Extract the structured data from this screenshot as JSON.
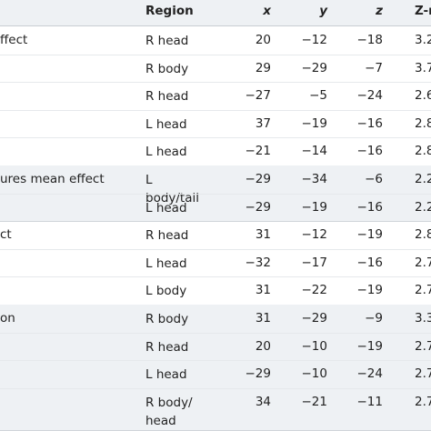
{
  "table": {
    "header": [
      "Region",
      "x",
      "y",
      "z",
      "Z-max"
    ],
    "groups": [
      {
        "label": "ffect",
        "rows": [
          [
            "R head",
            "20",
            "−12",
            "−18",
            "3.2"
          ],
          [
            "R body",
            "29",
            "−29",
            "−7",
            "3.7"
          ],
          [
            "R head",
            "−27",
            "−5",
            "−24",
            "2.6"
          ],
          [
            "L head",
            "37",
            "−19",
            "−16",
            "2.8"
          ],
          [
            "L head",
            "−21",
            "−14",
            "−16",
            "2.8"
          ]
        ]
      },
      {
        "label": "ures mean effect",
        "rows": [
          [
            "L body/tail",
            "−29",
            "−34",
            "−6",
            "2.2"
          ],
          [
            "L head",
            "−29",
            "−19",
            "−16",
            "2.2"
          ]
        ]
      },
      {
        "label": "ct",
        "rows": [
          [
            "R head",
            "31",
            "−12",
            "−19",
            "2.8"
          ],
          [
            "L head",
            "−32",
            "−17",
            "−16",
            "2.7"
          ],
          [
            "L body",
            "31",
            "−22",
            "−19",
            "2.7"
          ]
        ]
      },
      {
        "label": "on",
        "rows": [
          [
            "R body",
            "31",
            "−29",
            "−9",
            "3.3"
          ],
          [
            "R head",
            "20",
            "−10",
            "−19",
            "2.7"
          ],
          [
            "L head",
            "−29",
            "−10",
            "−24",
            "2.7"
          ],
          [
            "R body/ head",
            "34",
            "−21",
            "−11",
            "2.7"
          ]
        ]
      }
    ]
  }
}
